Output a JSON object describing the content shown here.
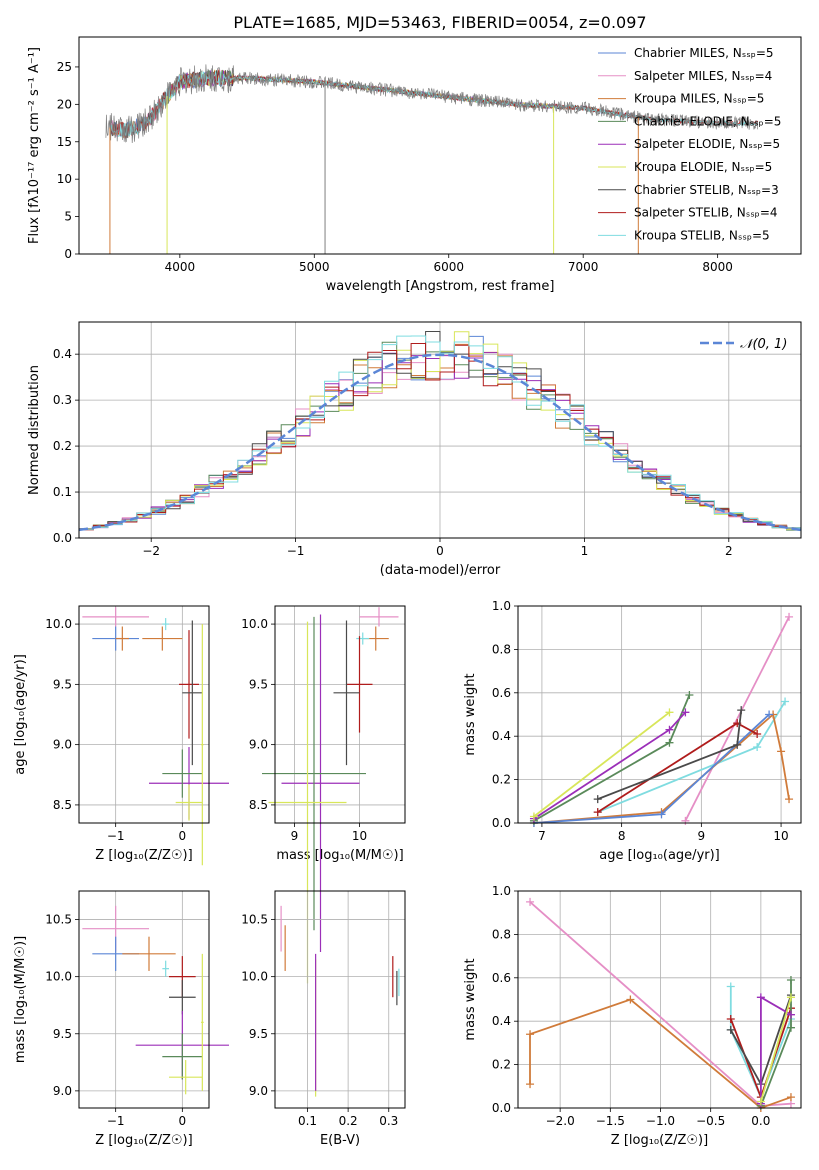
{
  "figure_title": "PLATE=1685, MJD=53463, FIBERID=0054, z=0.097",
  "colors": {
    "Chabrier MILES": "#5b86d6",
    "Salpeter MILES": "#e58fc6",
    "Kroupa MILES": "#d07b3a",
    "Chabrier ELODIE": "#5a8a5a",
    "Salpeter ELODIE": "#9b2fb8",
    "Kroupa ELODIE": "#d8e65a",
    "Chabrier STELIB": "#4a4a4a",
    "Salpeter STELIB": "#b01c1c",
    "Kroupa STELIB": "#7fdce0",
    "gauss": "#5b86d6",
    "data": "#7f7f7f"
  },
  "chart_data": [
    {
      "id": "spectrum",
      "type": "line",
      "title": "PLATE=1685, MJD=53463, FIBERID=0054, z=0.097",
      "xlabel": "wavelength [Angstrom, rest frame]",
      "ylabel": "Flux [fλ10⁻¹⁷ erg cm⁻² s⁻¹ A⁻¹]",
      "xlim": [
        3250,
        8620
      ],
      "ylim": [
        0,
        29
      ],
      "xticks": [
        "4000",
        "5000",
        "6000",
        "7000",
        "8000"
      ],
      "yticks": [
        "0",
        "5",
        "10",
        "15",
        "20",
        "25"
      ],
      "legend_position": "top-right",
      "legend": [
        "Chabrier MILES, Nₛₛₚ=5",
        "Salpeter MILES, Nₛₛₚ=4",
        "Kroupa MILES, Nₛₛₚ=5",
        "Chabrier ELODIE, Nₛₛₚ=5",
        "Salpeter ELODIE, Nₛₛₚ=5",
        "Kroupa ELODIE, Nₛₛₚ=5",
        "Chabrier STELIB, Nₛₛₚ=3",
        "Salpeter STELIB, Nₛₛₚ=4",
        "Kroupa STELIB, Nₛₛₚ=5"
      ],
      "continuum": [
        [
          3450,
          17
        ],
        [
          3600,
          16.5
        ],
        [
          3750,
          17.5
        ],
        [
          3900,
          21
        ],
        [
          4000,
          23
        ],
        [
          4200,
          23.5
        ],
        [
          4500,
          23.5
        ],
        [
          5000,
          23
        ],
        [
          5500,
          22
        ],
        [
          6000,
          21
        ],
        [
          6500,
          20
        ],
        [
          7000,
          19.5
        ],
        [
          7500,
          18
        ],
        [
          8000,
          17.5
        ],
        [
          8300,
          17.5
        ]
      ],
      "dips": [
        {
          "x": 3480,
          "y": 0,
          "series": "Kroupa MILES"
        },
        {
          "x": 3905,
          "y": 0,
          "series": "Kroupa ELODIE"
        },
        {
          "x": 5080,
          "y": 0,
          "series": "data"
        },
        {
          "x": 6780,
          "y": 0,
          "series": "Kroupa ELODIE"
        },
        {
          "x": 7410,
          "y": 0,
          "series": "Kroupa MILES"
        }
      ]
    },
    {
      "id": "residuals",
      "type": "histogram",
      "xlabel": "(data-model)/error",
      "ylabel": "Normed distribution",
      "xlim": [
        -2.5,
        2.5
      ],
      "ylim": [
        0,
        0.47
      ],
      "xticks": [
        "−2",
        "−1",
        "0",
        "1",
        "2"
      ],
      "yticks": [
        "0.0",
        "0.1",
        "0.2",
        "0.3",
        "0.4"
      ],
      "bin_width": 0.1,
      "legend": "𝒩(0, 1)",
      "legend_position": "top-right"
    },
    {
      "id": "age-vs-Z",
      "type": "errorbar",
      "xlabel": "Z [log₁₀(Z/Z☉)]",
      "ylabel": "age  [log₁₀(age/yr)]",
      "xlim": [
        -1.55,
        0.4
      ],
      "ylim": [
        8.35,
        10.15
      ],
      "xticks": [
        "−1",
        "0"
      ],
      "yticks": [
        "8.5",
        "9.0",
        "9.5",
        "10.0"
      ],
      "points": [
        {
          "series": "Chabrier MILES",
          "x": -1.0,
          "y": 9.88,
          "xerr": 0.35,
          "yerr": 0.1
        },
        {
          "series": "Salpeter MILES",
          "x": -1.0,
          "y": 10.06,
          "xerr": 0.5,
          "yerr": 0.08
        },
        {
          "series": "Kroupa MILES",
          "x": -0.9,
          "y": 9.88,
          "xerr": 0.1,
          "yerr": 0.1
        },
        {
          "series": "Kroupa MILES",
          "x": -0.3,
          "y": 9.88,
          "xerr": 0.3,
          "yerr": 0.1
        },
        {
          "series": "Kroupa STELIB",
          "x": -0.25,
          "y": 10.0,
          "xerr": 0.05,
          "yerr": 0.05
        },
        {
          "series": "Salpeter STELIB",
          "x": 0.1,
          "y": 9.5,
          "xerr": 0.15,
          "yerr": 0.45
        },
        {
          "series": "Chabrier STELIB",
          "x": 0.15,
          "y": 9.43,
          "xerr": 0.15,
          "yerr": 0.6
        },
        {
          "series": "Salpeter ELODIE",
          "x": 0.1,
          "y": 8.68,
          "xerr": 0.6,
          "yerr": 0.3
        },
        {
          "series": "Chabrier ELODIE",
          "x": 0.0,
          "y": 8.76,
          "xerr": 0.3,
          "yerr": 0.2
        },
        {
          "series": "Kroupa ELODIE",
          "x": 0.1,
          "y": 8.52,
          "xerr": 0.2,
          "yerr": 0.15
        },
        {
          "series": "Kroupa ELODIE",
          "x": 0.3,
          "y": 9.0,
          "xerr": 0.02,
          "yerr": 1.0
        }
      ]
    },
    {
      "id": "age-vs-mass",
      "type": "errorbar",
      "xlabel": "mass [log₁₀(M/M☉)]",
      "xlim": [
        8.7,
        10.7
      ],
      "ylim": [
        8.35,
        10.15
      ],
      "xticks": [
        "9",
        "10"
      ],
      "yticks": [
        "8.5",
        "9.0",
        "9.5",
        "10.0"
      ],
      "points": [
        {
          "series": "Salpeter MILES",
          "x": 10.3,
          "y": 10.06,
          "xerr": 0.3,
          "yerr": 0.08
        },
        {
          "series": "Kroupa MILES",
          "x": 10.25,
          "y": 9.88,
          "xerr": 0.2,
          "yerr": 0.1
        },
        {
          "series": "Kroupa STELIB",
          "x": 10.05,
          "y": 9.88,
          "xerr": 0.1,
          "yerr": 0.05
        },
        {
          "series": "Salpeter STELIB",
          "x": 10.0,
          "y": 9.5,
          "xerr": 0.2,
          "yerr": 0.4
        },
        {
          "series": "Chabrier STELIB",
          "x": 9.8,
          "y": 9.43,
          "xerr": 0.2,
          "yerr": 0.6
        },
        {
          "series": "Salpeter ELODIE",
          "x": 9.4,
          "y": 8.68,
          "xerr": 0.6,
          "yerr": 1.4
        },
        {
          "series": "Chabrier ELODIE",
          "x": 9.3,
          "y": 8.76,
          "xerr": 0.8,
          "yerr": 1.3
        },
        {
          "series": "Kroupa ELODIE",
          "x": 9.2,
          "y": 8.52,
          "xerr": 0.6,
          "yerr": 1.5
        }
      ]
    },
    {
      "id": "weight-vs-age",
      "type": "line",
      "xlabel": "age  [log₁₀(age/yr)]",
      "ylabel": "mass weight",
      "xlim": [
        6.7,
        10.25
      ],
      "ylim": [
        0,
        1.0
      ],
      "xticks": [
        "7",
        "8",
        "9",
        "10"
      ],
      "yticks": [
        "0.0",
        "0.2",
        "0.4",
        "0.6",
        "0.8",
        "1.0"
      ],
      "series": [
        {
          "name": "Salpeter MILES",
          "x": [
            8.8,
            10.1
          ],
          "y": [
            0.01,
            0.95
          ]
        },
        {
          "name": "Kroupa STELIB",
          "x": [
            7.7,
            9.7,
            10.05
          ],
          "y": [
            0.05,
            0.35,
            0.56
          ]
        },
        {
          "name": "Kroupa MILES",
          "x": [
            6.9,
            8.5,
            9.9,
            10.0,
            10.1
          ],
          "y": [
            0.0,
            0.05,
            0.5,
            0.33,
            0.11
          ]
        },
        {
          "name": "Chabrier MILES",
          "x": [
            6.9,
            8.5,
            9.85
          ],
          "y": [
            0.0,
            0.04,
            0.5
          ]
        },
        {
          "name": "Salpeter STELIB",
          "x": [
            7.7,
            9.45,
            9.7
          ],
          "y": [
            0.05,
            0.46,
            0.41
          ]
        },
        {
          "name": "Chabrier STELIB",
          "x": [
            7.7,
            9.45,
            9.5
          ],
          "y": [
            0.11,
            0.36,
            0.52
          ]
        },
        {
          "name": "Chabrier ELODIE",
          "x": [
            6.9,
            8.6,
            8.85
          ],
          "y": [
            0.01,
            0.37,
            0.59
          ]
        },
        {
          "name": "Salpeter ELODIE",
          "x": [
            6.9,
            8.6,
            8.8
          ],
          "y": [
            0.02,
            0.43,
            0.51
          ]
        },
        {
          "name": "Kroupa ELODIE",
          "x": [
            6.9,
            8.6
          ],
          "y": [
            0.03,
            0.51
          ]
        }
      ]
    },
    {
      "id": "mass-vs-Z",
      "type": "errorbar",
      "xlabel": "Z [log₁₀(Z/Z☉)]",
      "ylabel": "mass [log₁₀(M/M☉)]",
      "xlim": [
        -1.55,
        0.4
      ],
      "ylim": [
        8.85,
        10.75
      ],
      "xticks": [
        "−1",
        "0"
      ],
      "yticks": [
        "9.0",
        "9.5",
        "10.0",
        "10.5"
      ],
      "points": [
        {
          "series": "Salpeter MILES",
          "x": -1.0,
          "y": 10.42,
          "xerr": 0.5,
          "yerr": 0.2
        },
        {
          "series": "Chabrier MILES",
          "x": -1.0,
          "y": 10.2,
          "xerr": 0.35,
          "yerr": 0.15
        },
        {
          "series": "Kroupa MILES",
          "x": -0.5,
          "y": 10.2,
          "xerr": 0.4,
          "yerr": 0.15
        },
        {
          "series": "Kroupa STELIB",
          "x": -0.25,
          "y": 10.07,
          "xerr": 0.05,
          "yerr": 0.07
        },
        {
          "series": "Salpeter STELIB",
          "x": 0.0,
          "y": 10.0,
          "xerr": 0.2,
          "yerr": 0.18
        },
        {
          "series": "Chabrier STELIB",
          "x": 0.0,
          "y": 9.82,
          "xerr": 0.2,
          "yerr": 0.15
        },
        {
          "series": "Salpeter ELODIE",
          "x": 0.0,
          "y": 9.4,
          "xerr": 0.7,
          "yerr": 0.3
        },
        {
          "series": "Chabrier ELODIE",
          "x": 0.0,
          "y": 9.3,
          "xerr": 0.3,
          "yerr": 0.2
        },
        {
          "series": "Kroupa ELODIE",
          "x": 0.05,
          "y": 9.12,
          "xerr": 0.25,
          "yerr": 0.15
        },
        {
          "series": "Kroupa ELODIE",
          "x": 0.3,
          "y": 9.6,
          "xerr": 0.02,
          "yerr": 0.6
        }
      ]
    },
    {
      "id": "mass-vs-ebv",
      "type": "errorbar",
      "xlabel": "E(B-V)",
      "xlim": [
        0.02,
        0.34
      ],
      "ylim": [
        8.85,
        10.75
      ],
      "xticks": [
        "0.1",
        "0.2",
        "0.3"
      ],
      "yticks": [
        "9.0",
        "9.5",
        "10.0",
        "10.5"
      ],
      "points": [
        {
          "series": "Salpeter MILES",
          "x": 0.035,
          "y": 10.42,
          "xerr": 0.0,
          "yerr": 0.2
        },
        {
          "series": "Kroupa MILES",
          "x": 0.045,
          "y": 10.25,
          "xerr": 0.0,
          "yerr": 0.2
        },
        {
          "series": "Kroupa ELODIE",
          "x": 0.12,
          "y": 9.55,
          "xerr": 0.0,
          "yerr": 0.6
        },
        {
          "series": "Salpeter ELODIE",
          "x": 0.12,
          "y": 9.6,
          "xerr": 0.0,
          "yerr": 0.6
        },
        {
          "series": "Salpeter STELIB",
          "x": 0.31,
          "y": 10.0,
          "xerr": 0.0,
          "yerr": 0.18
        },
        {
          "series": "Chabrier STELIB",
          "x": 0.32,
          "y": 9.9,
          "xerr": 0.0,
          "yerr": 0.15
        },
        {
          "series": "Kroupa STELIB",
          "x": 0.325,
          "y": 9.95,
          "xerr": 0.0,
          "yerr": 0.12
        }
      ]
    },
    {
      "id": "weight-vs-Z",
      "type": "line",
      "xlabel": "Z [log₁₀(Z/Z☉)]",
      "ylabel": "mass weight",
      "xlim": [
        -2.42,
        0.4
      ],
      "ylim": [
        0,
        1.0
      ],
      "xticks": [
        "−2.0",
        "−1.5",
        "−1.0",
        "−0.5",
        "0.0"
      ],
      "yticks": [
        "0.0",
        "0.2",
        "0.4",
        "0.6",
        "0.8",
        "1.0"
      ],
      "series": [
        {
          "name": "Salpeter MILES",
          "x": [
            -2.3,
            0.0,
            0.3
          ],
          "y": [
            0.95,
            0.01,
            0.02
          ]
        },
        {
          "name": "Kroupa MILES",
          "x": [
            -2.3,
            -2.3,
            -1.3,
            0.0,
            0.3
          ],
          "y": [
            0.11,
            0.34,
            0.5,
            0.0,
            0.05
          ]
        },
        {
          "name": "Kroupa STELIB",
          "x": [
            -0.3,
            -0.3,
            0.0,
            0.3
          ],
          "y": [
            0.56,
            0.36,
            0.05,
            0.41
          ]
        },
        {
          "name": "Salpeter STELIB",
          "x": [
            -0.3,
            0.0,
            0.3
          ],
          "y": [
            0.41,
            0.05,
            0.46
          ]
        },
        {
          "name": "Chabrier STELIB",
          "x": [
            -0.3,
            0.0,
            0.3
          ],
          "y": [
            0.36,
            0.11,
            0.52
          ]
        },
        {
          "name": "Chabrier ELODIE",
          "x": [
            0.0,
            0.3,
            0.3
          ],
          "y": [
            0.01,
            0.37,
            0.59
          ]
        },
        {
          "name": "Salpeter ELODIE",
          "x": [
            0.0,
            0.0,
            0.3
          ],
          "y": [
            0.02,
            0.51,
            0.43
          ]
        },
        {
          "name": "Kroupa ELODIE",
          "x": [
            0.0,
            0.3
          ],
          "y": [
            0.03,
            0.51
          ]
        }
      ]
    }
  ]
}
